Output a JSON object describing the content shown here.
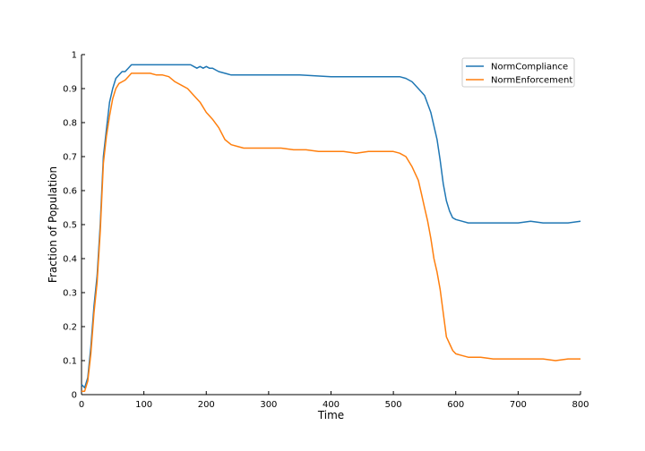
{
  "chart_data": {
    "type": "line",
    "xlabel": "Time",
    "ylabel": "Fraction of Population",
    "xlim": [
      0,
      800
    ],
    "ylim": [
      0,
      1
    ],
    "x_ticks": [
      0,
      100,
      200,
      300,
      400,
      500,
      600,
      700,
      800
    ],
    "y_ticks": [
      0,
      0.1,
      0.2,
      0.3,
      0.4,
      0.5,
      0.6,
      0.7,
      0.8,
      0.9,
      1
    ],
    "x_tick_labels": [
      "0",
      "100",
      "200",
      "300",
      "400",
      "500",
      "600",
      "700",
      "800"
    ],
    "y_tick_labels": [
      "0",
      "0.1",
      "0.2",
      "0.3",
      "0.4",
      "0.5",
      "0.6",
      "0.7",
      "0.8",
      "0.9",
      "1"
    ],
    "grid": false,
    "legend_position": "top-right",
    "series": [
      {
        "name": "NormCompliance",
        "color": "#1f77b4",
        "points": [
          [
            0,
            0.03
          ],
          [
            5,
            0.02
          ],
          [
            10,
            0.05
          ],
          [
            15,
            0.14
          ],
          [
            20,
            0.26
          ],
          [
            25,
            0.35
          ],
          [
            30,
            0.5
          ],
          [
            35,
            0.7
          ],
          [
            40,
            0.78
          ],
          [
            45,
            0.86
          ],
          [
            50,
            0.9
          ],
          [
            55,
            0.93
          ],
          [
            60,
            0.94
          ],
          [
            65,
            0.95
          ],
          [
            70,
            0.95
          ],
          [
            75,
            0.96
          ],
          [
            80,
            0.97
          ],
          [
            90,
            0.97
          ],
          [
            100,
            0.97
          ],
          [
            120,
            0.97
          ],
          [
            140,
            0.97
          ],
          [
            160,
            0.97
          ],
          [
            175,
            0.97
          ],
          [
            180,
            0.965
          ],
          [
            185,
            0.96
          ],
          [
            190,
            0.965
          ],
          [
            195,
            0.96
          ],
          [
            200,
            0.965
          ],
          [
            205,
            0.96
          ],
          [
            210,
            0.96
          ],
          [
            215,
            0.955
          ],
          [
            220,
            0.95
          ],
          [
            230,
            0.945
          ],
          [
            240,
            0.94
          ],
          [
            260,
            0.94
          ],
          [
            280,
            0.94
          ],
          [
            300,
            0.94
          ],
          [
            350,
            0.94
          ],
          [
            400,
            0.935
          ],
          [
            450,
            0.935
          ],
          [
            480,
            0.935
          ],
          [
            500,
            0.935
          ],
          [
            510,
            0.935
          ],
          [
            520,
            0.93
          ],
          [
            530,
            0.92
          ],
          [
            540,
            0.9
          ],
          [
            550,
            0.88
          ],
          [
            560,
            0.83
          ],
          [
            565,
            0.79
          ],
          [
            570,
            0.75
          ],
          [
            575,
            0.69
          ],
          [
            580,
            0.62
          ],
          [
            585,
            0.57
          ],
          [
            590,
            0.54
          ],
          [
            595,
            0.52
          ],
          [
            600,
            0.515
          ],
          [
            610,
            0.51
          ],
          [
            620,
            0.505
          ],
          [
            640,
            0.505
          ],
          [
            660,
            0.505
          ],
          [
            680,
            0.505
          ],
          [
            700,
            0.505
          ],
          [
            720,
            0.51
          ],
          [
            740,
            0.505
          ],
          [
            760,
            0.505
          ],
          [
            780,
            0.505
          ],
          [
            800,
            0.51
          ]
        ]
      },
      {
        "name": "NormEnforcement",
        "color": "#ff7f0e",
        "points": [
          [
            0,
            0.01
          ],
          [
            5,
            0.01
          ],
          [
            10,
            0.04
          ],
          [
            15,
            0.12
          ],
          [
            20,
            0.24
          ],
          [
            25,
            0.33
          ],
          [
            30,
            0.48
          ],
          [
            35,
            0.68
          ],
          [
            40,
            0.76
          ],
          [
            45,
            0.82
          ],
          [
            50,
            0.87
          ],
          [
            55,
            0.9
          ],
          [
            60,
            0.915
          ],
          [
            65,
            0.92
          ],
          [
            70,
            0.925
          ],
          [
            75,
            0.935
          ],
          [
            80,
            0.945
          ],
          [
            90,
            0.945
          ],
          [
            100,
            0.945
          ],
          [
            110,
            0.945
          ],
          [
            120,
            0.94
          ],
          [
            130,
            0.94
          ],
          [
            140,
            0.935
          ],
          [
            150,
            0.92
          ],
          [
            160,
            0.91
          ],
          [
            170,
            0.9
          ],
          [
            180,
            0.88
          ],
          [
            190,
            0.86
          ],
          [
            200,
            0.83
          ],
          [
            210,
            0.81
          ],
          [
            220,
            0.785
          ],
          [
            230,
            0.75
          ],
          [
            240,
            0.735
          ],
          [
            250,
            0.73
          ],
          [
            260,
            0.725
          ],
          [
            280,
            0.725
          ],
          [
            300,
            0.725
          ],
          [
            320,
            0.725
          ],
          [
            340,
            0.72
          ],
          [
            360,
            0.72
          ],
          [
            380,
            0.715
          ],
          [
            400,
            0.715
          ],
          [
            420,
            0.715
          ],
          [
            440,
            0.71
          ],
          [
            460,
            0.715
          ],
          [
            480,
            0.715
          ],
          [
            500,
            0.715
          ],
          [
            510,
            0.71
          ],
          [
            520,
            0.7
          ],
          [
            530,
            0.67
          ],
          [
            540,
            0.63
          ],
          [
            545,
            0.59
          ],
          [
            550,
            0.55
          ],
          [
            555,
            0.51
          ],
          [
            560,
            0.46
          ],
          [
            565,
            0.4
          ],
          [
            570,
            0.36
          ],
          [
            575,
            0.31
          ],
          [
            580,
            0.24
          ],
          [
            585,
            0.17
          ],
          [
            590,
            0.15
          ],
          [
            595,
            0.13
          ],
          [
            600,
            0.12
          ],
          [
            610,
            0.115
          ],
          [
            620,
            0.11
          ],
          [
            640,
            0.11
          ],
          [
            660,
            0.105
          ],
          [
            680,
            0.105
          ],
          [
            700,
            0.105
          ],
          [
            720,
            0.105
          ],
          [
            740,
            0.105
          ],
          [
            760,
            0.1
          ],
          [
            780,
            0.105
          ],
          [
            800,
            0.105
          ]
        ]
      }
    ]
  }
}
